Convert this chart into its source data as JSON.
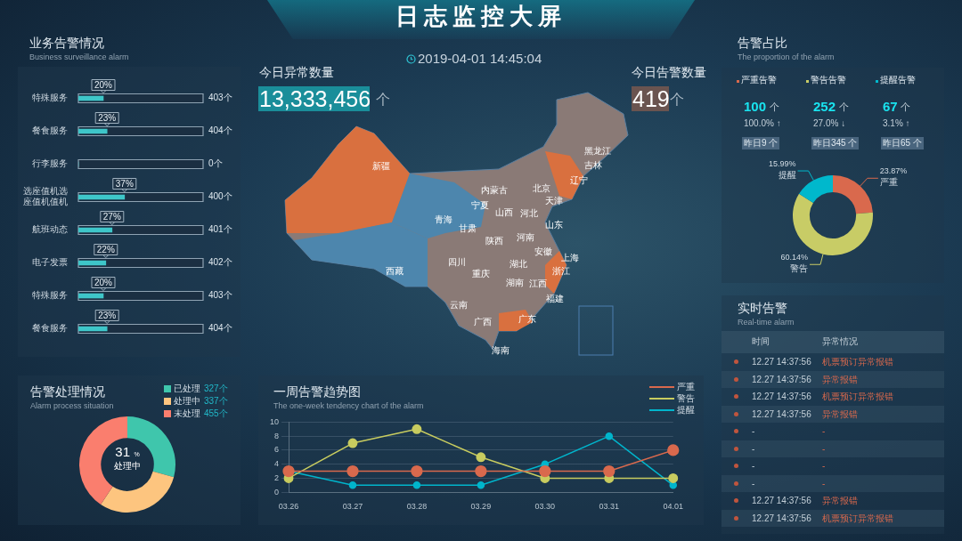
{
  "chart_data": [
    {
      "type": "bar",
      "title": "业务告警情况",
      "subtitle": "Business surveillance alarm",
      "orientation": "horizontal",
      "categories": [
        "特殊服务",
        "餐食服务",
        "行李服务",
        "选座值机选座值机值机",
        "航班动态",
        "电子发票",
        "特殊服务",
        "餐食服务"
      ],
      "values": [
        20,
        23,
        0,
        37,
        27,
        22,
        20,
        23
      ],
      "value_labels": [
        "20%",
        "23%",
        null,
        "37%",
        "27%",
        "22%",
        "20%",
        "23%"
      ],
      "color": "#3ec6c9",
      "xlim": [
        0,
        100
      ],
      "tick_labels": "y",
      "grid": false,
      "legend": false,
      "annotations": [
        "403个",
        "404个",
        "0个",
        "400个",
        "401个",
        "402个",
        "403个",
        "404个"
      ]
    },
    {
      "type": "other",
      "title": "日志监控大屏",
      "annotations": [
        "2019-04-01 14:45:04",
        "今日异常数量",
        "13,333,456",
        "个",
        "今日告警数量",
        "419",
        "个",
        "新疆",
        "西藏",
        "青海",
        "甘肃",
        "宁夏",
        "内蒙古",
        "陕西",
        "四川",
        "重庆",
        "云南",
        "广西",
        "广东",
        "海南",
        "山西",
        "河北",
        "北京",
        "天津",
        "辽宁",
        "吉林",
        "黑龙江",
        "山东",
        "河南",
        "湖北",
        "湖南",
        "江西",
        "安徽",
        "上海",
        "浙江",
        "福建"
      ]
    },
    {
      "type": "donut",
      "title": "告警占比",
      "subtitle": "The proportion of the alarm",
      "categories": [
        "严重",
        "警告",
        "提醒"
      ],
      "values": [
        23.87,
        60.14,
        15.99
      ],
      "value_labels": [
        "23.87%",
        "60.14%",
        "15.99%"
      ],
      "colors": [
        "#d9694d",
        "#c8cc66",
        "#00b8cc"
      ],
      "annotations": [
        "严重告警",
        "100",
        "个",
        "100.0% ↑",
        "昨日9 个",
        "警告告警",
        "252",
        "个",
        "27.0% ↓",
        "昨日345 个",
        "提醒告警",
        "67",
        "个",
        "3.1% ↑",
        "昨日65 个"
      ]
    },
    {
      "type": "other",
      "title": "实时告警",
      "subtitle": "Real-time alarm",
      "annotations": [
        "时间",
        "异常情况",
        "12.27 14:37:56",
        "机票预订异常报错",
        "12.27 14:37:56",
        "异常报错",
        "12.27 14:37:56",
        "机票预订异常报错",
        "12.27 14:37:56",
        "异常报错",
        "-",
        "-",
        "-",
        "-",
        "-",
        "-",
        "-",
        "-",
        "12.27 14:37:56",
        "异常报错",
        "12.27 14:37:56",
        "机票预订异常报错"
      ]
    },
    {
      "type": "donut",
      "title": "告警处理情况",
      "subtitle": "Alarm process situation",
      "categories": [
        "已处理",
        "处理中",
        "未处理"
      ],
      "values": [
        327,
        337,
        455
      ],
      "value_labels": [
        "327个",
        "337个",
        "455个"
      ],
      "colors": [
        "#3fc6ac",
        "#fdc57f",
        "#fa7e6e"
      ],
      "legend": "top right",
      "annotations": [
        "31",
        "%",
        "处理中"
      ]
    },
    {
      "type": "line",
      "title": "一周告警趋势图",
      "subtitle": "The one-week tendency chart of the alarm",
      "categories": [
        "03.26",
        "03.27",
        "03.28",
        "03.29",
        "03.30",
        "03.31",
        "04.01"
      ],
      "series": [
        {
          "name": "严重",
          "color": "#d9694d",
          "values": [
            3,
            3,
            3,
            3,
            3,
            3,
            6
          ]
        },
        {
          "name": "警告",
          "color": "#c8cc5f",
          "values": [
            2,
            7,
            9,
            5,
            2,
            2,
            2
          ]
        },
        {
          "name": "提醒",
          "color": "#00b5cc",
          "values": [
            3,
            1,
            1,
            1,
            4,
            8,
            1
          ]
        }
      ],
      "ylim": [
        0,
        10
      ],
      "yticks": [
        0,
        2,
        4,
        6,
        8,
        10
      ],
      "grid": "y",
      "legend": "top right",
      "marker": "circle",
      "line_style": "solid"
    }
  ]
}
